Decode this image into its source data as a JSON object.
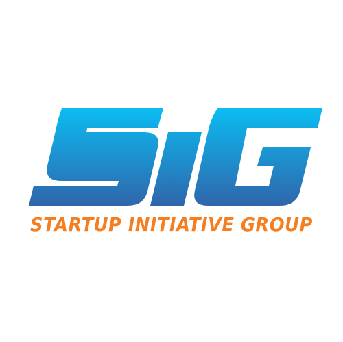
{
  "logo": {
    "mark_text": "SIG",
    "tagline": "STARTUP INITIATIVE GROUP",
    "colors": {
      "mark_gradient_top": "#0bbcf2",
      "mark_gradient_bottom": "#2f66ab",
      "tagline": "#f57e20",
      "background": "#ffffff"
    }
  }
}
